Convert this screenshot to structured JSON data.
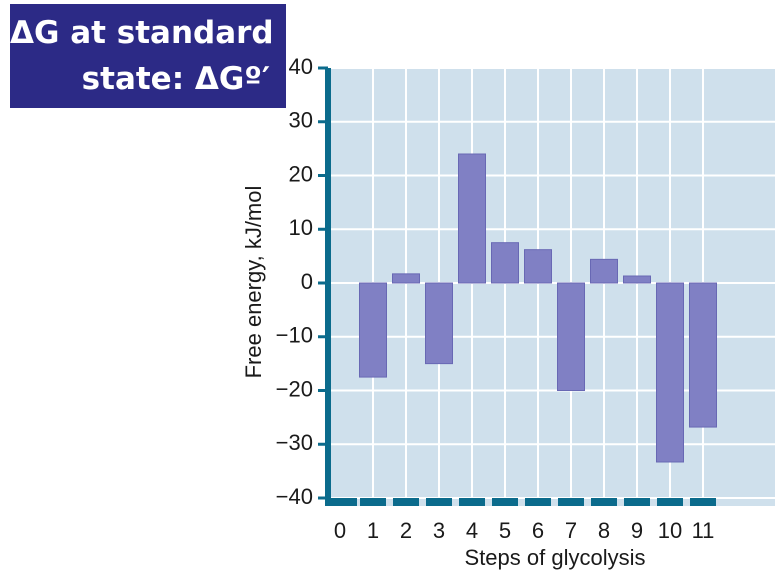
{
  "title_box": {
    "line1": "ΔG at standard",
    "line2": "state: ΔGº′"
  },
  "colors": {
    "title_bg": "#2c2a86",
    "plot_bg": "#cfe0ec",
    "grid": "#ffffff",
    "axis": "#0b6b8c",
    "bar": "#8080c4",
    "bar_edge": "#6868b4"
  },
  "chart_data": {
    "type": "bar",
    "title": "ΔG at standard state: ΔGº′",
    "xlabel": "Steps of glycolysis",
    "ylabel": "Free energy, kJ/mol",
    "categories": [
      "1",
      "2",
      "3",
      "4",
      "5",
      "6",
      "7",
      "8",
      "9",
      "10",
      "11"
    ],
    "x_ticks": [
      "0",
      "1",
      "2",
      "3",
      "4",
      "5",
      "6",
      "7",
      "8",
      "9",
      "10",
      "11"
    ],
    "y_ticks": [
      40,
      30,
      20,
      10,
      0,
      -10,
      -20,
      -30,
      -40
    ],
    "y_tick_labels": [
      "40",
      "30",
      "20",
      "10",
      "0",
      "−10",
      "−20",
      "−30",
      "−40"
    ],
    "values": [
      -17.5,
      1.7,
      -15,
      24,
      7.5,
      6.2,
      -20,
      4.4,
      1.3,
      -33.3,
      -26.8
    ],
    "ylim": [
      -40,
      40
    ],
    "grid": true
  }
}
